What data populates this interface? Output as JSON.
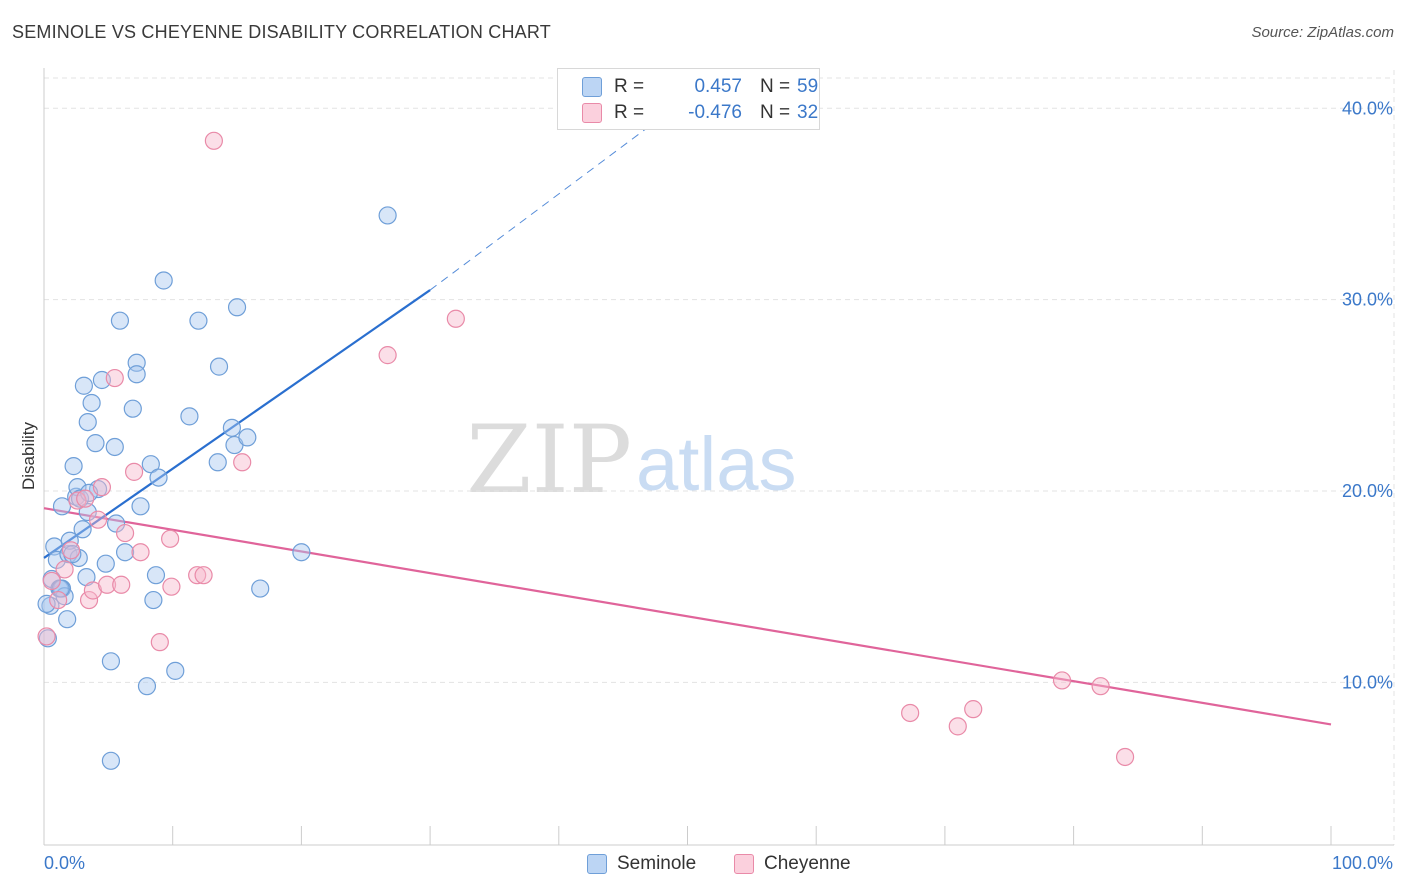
{
  "title": "SEMINOLE VS CHEYENNE DISABILITY CORRELATION CHART",
  "source": "Source: ZipAtlas.com",
  "watermark": {
    "zip": "ZIP",
    "atlas": "atlas"
  },
  "colors": {
    "seminole_fill": "#a9c8f0",
    "seminole_stroke": "#6f9fd8",
    "seminole_line": "#2a6fcf",
    "cheyenne_fill": "#f6b8cb",
    "cheyenne_stroke": "#e98aa8",
    "cheyenne_line": "#e0649a",
    "tick_label": "#3b78c9",
    "grid": "#e3e3e3"
  },
  "legend": {
    "rows": [
      {
        "r_label": "R =",
        "r_value": "0.457",
        "n_label": "N =",
        "n_value": "59"
      },
      {
        "r_label": "R =",
        "r_value": "-0.476",
        "n_label": "N =",
        "n_value": "32"
      }
    ],
    "bottom": [
      "Seminole",
      "Cheyenne"
    ]
  },
  "chart_data": {
    "type": "scatter",
    "title": "SEMINOLE VS CHEYENNE DISABILITY CORRELATION CHART",
    "xlabel": "",
    "ylabel": "Disability",
    "xlim": [
      0,
      100
    ],
    "ylim": [
      1.5,
      42
    ],
    "x_tick_labels": [
      "0.0%",
      "100.0%"
    ],
    "y_ticks": [
      10,
      20,
      30,
      40
    ],
    "y_tick_labels": [
      "10.0%",
      "20.0%",
      "30.0%",
      "40.0%"
    ],
    "grid": "horizontal dashed",
    "legend_position": "top-center",
    "series": [
      {
        "name": "Seminole",
        "r": 0.457,
        "n": 59,
        "points": [
          [
            0.3,
            12.3
          ],
          [
            0.5,
            14.0
          ],
          [
            0.6,
            15.4
          ],
          [
            0.8,
            17.1
          ],
          [
            1.0,
            16.4
          ],
          [
            1.2,
            14.9
          ],
          [
            1.4,
            19.2
          ],
          [
            1.4,
            14.9
          ],
          [
            1.6,
            14.5
          ],
          [
            1.8,
            13.3
          ],
          [
            1.9,
            16.7
          ],
          [
            2.0,
            17.4
          ],
          [
            2.3,
            21.3
          ],
          [
            2.5,
            19.7
          ],
          [
            2.6,
            20.2
          ],
          [
            2.7,
            16.5
          ],
          [
            2.8,
            19.6
          ],
          [
            3.0,
            18.0
          ],
          [
            3.1,
            25.5
          ],
          [
            3.3,
            15.5
          ],
          [
            3.4,
            23.6
          ],
          [
            3.4,
            18.9
          ],
          [
            3.7,
            24.6
          ],
          [
            4.0,
            22.5
          ],
          [
            4.2,
            20.1
          ],
          [
            4.5,
            25.8
          ],
          [
            4.8,
            16.2
          ],
          [
            5.2,
            11.1
          ],
          [
            5.2,
            5.9
          ],
          [
            5.5,
            22.3
          ],
          [
            5.6,
            18.3
          ],
          [
            5.9,
            28.9
          ],
          [
            6.3,
            16.8
          ],
          [
            6.9,
            24.3
          ],
          [
            7.2,
            26.7
          ],
          [
            7.2,
            26.1
          ],
          [
            7.5,
            19.2
          ],
          [
            8.0,
            9.8
          ],
          [
            8.3,
            21.4
          ],
          [
            8.5,
            14.3
          ],
          [
            8.7,
            15.6
          ],
          [
            8.9,
            20.7
          ],
          [
            9.3,
            31.0
          ],
          [
            10.2,
            10.6
          ],
          [
            11.3,
            23.9
          ],
          [
            12.0,
            28.9
          ],
          [
            13.5,
            21.5
          ],
          [
            13.6,
            26.5
          ],
          [
            14.6,
            23.3
          ],
          [
            14.8,
            22.4
          ],
          [
            15.0,
            29.6
          ],
          [
            15.8,
            22.8
          ],
          [
            16.8,
            14.9
          ],
          [
            20.0,
            16.8
          ],
          [
            26.7,
            34.4
          ],
          [
            0.2,
            14.1
          ],
          [
            1.3,
            14.9
          ],
          [
            2.2,
            16.7
          ],
          [
            3.5,
            19.9
          ]
        ],
        "trend": {
          "x": [
            0,
            30
          ],
          "y": [
            16.5,
            30.5
          ],
          "dashed_to": [
            50.5,
            40.8
          ]
        }
      },
      {
        "name": "Cheyenne",
        "r": -0.476,
        "n": 32,
        "points": [
          [
            0.2,
            12.4
          ],
          [
            0.6,
            15.3
          ],
          [
            1.1,
            14.3
          ],
          [
            1.6,
            15.9
          ],
          [
            2.1,
            16.9
          ],
          [
            2.6,
            19.5
          ],
          [
            3.2,
            19.6
          ],
          [
            3.5,
            14.3
          ],
          [
            3.8,
            14.8
          ],
          [
            4.2,
            18.5
          ],
          [
            4.5,
            20.2
          ],
          [
            4.9,
            15.1
          ],
          [
            5.5,
            25.9
          ],
          [
            6.0,
            15.1
          ],
          [
            6.3,
            17.8
          ],
          [
            7.0,
            21.0
          ],
          [
            7.5,
            16.8
          ],
          [
            9.0,
            12.1
          ],
          [
            9.8,
            17.5
          ],
          [
            9.9,
            15.0
          ],
          [
            11.9,
            15.6
          ],
          [
            12.4,
            15.6
          ],
          [
            13.2,
            38.3
          ],
          [
            15.4,
            21.5
          ],
          [
            26.7,
            27.1
          ],
          [
            32.0,
            29.0
          ],
          [
            67.3,
            8.4
          ],
          [
            71.0,
            7.7
          ],
          [
            72.2,
            8.6
          ],
          [
            79.1,
            10.1
          ],
          [
            82.1,
            9.8
          ],
          [
            84.0,
            6.1
          ]
        ],
        "trend": {
          "x": [
            0,
            100
          ],
          "y": [
            19.1,
            7.8
          ]
        }
      }
    ]
  }
}
